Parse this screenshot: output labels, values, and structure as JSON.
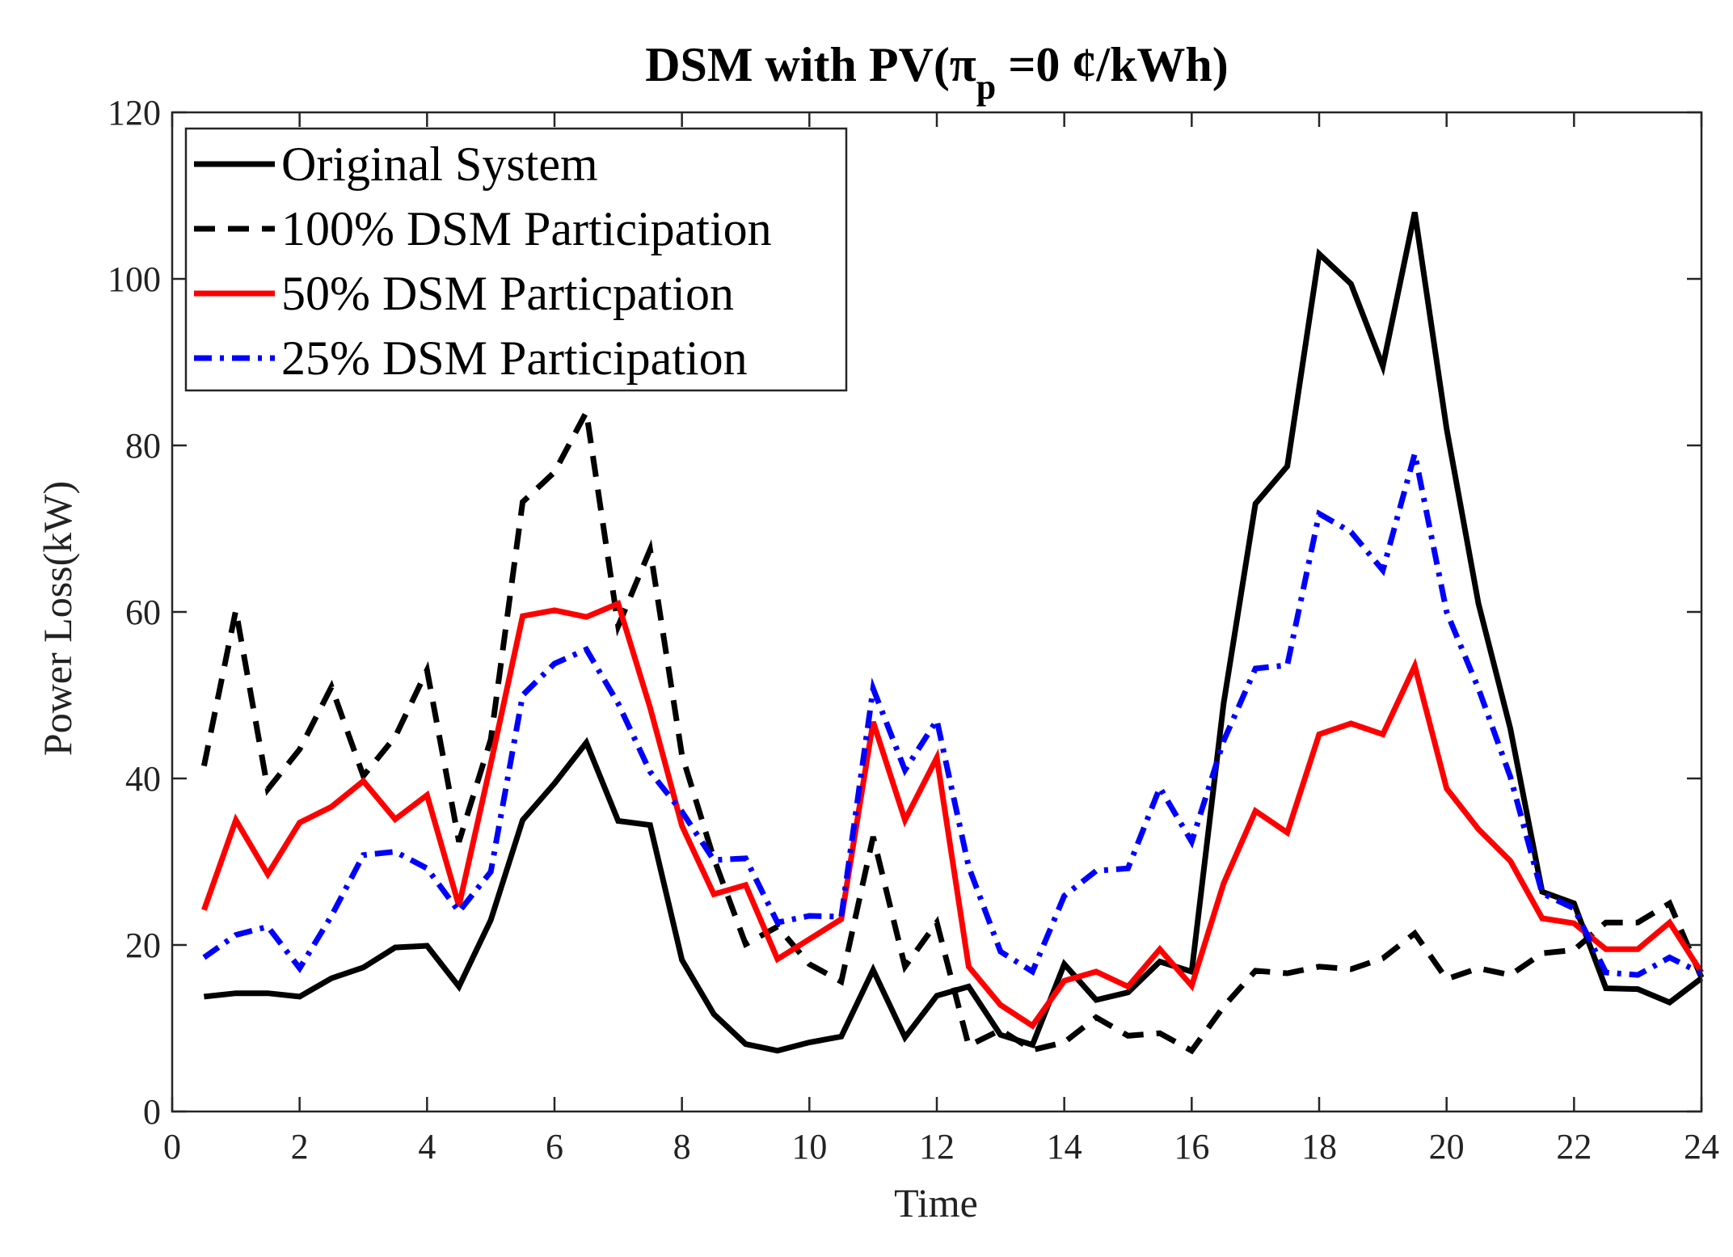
{
  "chart_data": {
    "type": "line",
    "title": {
      "prefix": "DSM with PV(",
      "pi": "π",
      "subscript": "p",
      "suffix": " =0 ¢/kWh)"
    },
    "xlabel": "Time",
    "ylabel": "Power Loss(kW)",
    "xlim": [
      0,
      24
    ],
    "ylim": [
      0,
      120
    ],
    "xticks": [
      0,
      2,
      4,
      6,
      8,
      10,
      12,
      14,
      16,
      18,
      20,
      22,
      24
    ],
    "yticks": [
      0,
      20,
      40,
      60,
      80,
      100,
      120
    ],
    "grid": false,
    "legend_position": "top-left",
    "x": [
      0.5,
      1,
      1.5,
      2,
      2.5,
      3,
      3.5,
      4,
      4.5,
      5,
      5.5,
      6,
      6.5,
      7,
      7.5,
      8,
      8.5,
      9,
      9.5,
      10,
      10.5,
      11,
      11.5,
      12,
      12.5,
      13,
      13.5,
      14,
      14.5,
      15,
      15.5,
      16,
      16.5,
      17,
      17.5,
      18,
      18.5,
      19,
      19.5,
      20,
      20.5,
      21,
      21.5,
      22,
      22.5,
      23,
      23.5,
      24
    ],
    "series": [
      {
        "name": "Original System",
        "color": "#000000",
        "dash": "solid",
        "values": [
          13.8,
          14.2,
          14.2,
          13.8,
          16,
          17.3,
          19.7,
          19.9,
          15,
          23,
          35,
          39.4,
          44.3,
          34.9,
          34.4,
          18.2,
          11.7,
          8.1,
          7.3,
          8.3,
          9,
          17,
          8.9,
          13.9,
          15,
          9.2,
          8,
          17.7,
          13.4,
          14.3,
          18,
          16.8,
          49,
          73,
          77.5,
          103,
          99.4,
          89.5,
          108,
          82,
          61,
          46,
          26.4,
          25,
          14.8,
          14.7,
          13.1,
          16
        ]
      },
      {
        "name": "100% DSM Participation",
        "color": "#000000",
        "dash": "dashed",
        "values": [
          41.5,
          60.2,
          38.7,
          43.5,
          51,
          40.3,
          45,
          53,
          32.4,
          44.7,
          73.2,
          76.8,
          84,
          58.3,
          67.5,
          42.8,
          30.4,
          20.1,
          22.2,
          17.7,
          15.6,
          33,
          17.4,
          22.7,
          7.9,
          9.8,
          7.4,
          8.3,
          11.3,
          9.1,
          9.4,
          7.3,
          12.6,
          16.9,
          16.6,
          17.4,
          17.1,
          18.4,
          21.4,
          15.9,
          17.2,
          16.4,
          19,
          19.4,
          22.7,
          22.7,
          25,
          16.1
        ]
      },
      {
        "name": "50% DSM Particpation",
        "color": "#ff0000",
        "dash": "solid",
        "values": [
          24.2,
          35,
          28.5,
          34.7,
          36.6,
          39.7,
          35.1,
          38,
          24.7,
          41.8,
          59.5,
          60.2,
          59.4,
          61,
          48.5,
          34.3,
          26.1,
          27.2,
          18.3,
          20.7,
          23.1,
          46.8,
          35,
          42.5,
          17.4,
          12.8,
          10.3,
          15.7,
          16.8,
          15,
          19.5,
          15.1,
          27.4,
          36.1,
          33.5,
          45.3,
          46.6,
          45.3,
          53.5,
          38.8,
          33.9,
          30.1,
          23.2,
          22.6,
          19.5,
          19.5,
          22.7,
          16.7
        ]
      },
      {
        "name": "25% DSM Participation",
        "color": "#0000ff",
        "dash": "dashdot",
        "values": [
          18.5,
          21.2,
          22.2,
          17.2,
          23.5,
          30.8,
          31.2,
          29.2,
          24,
          28.8,
          50,
          53.8,
          55.5,
          49,
          40.8,
          36,
          30.2,
          30.4,
          22.7,
          23.5,
          23.4,
          50.8,
          41,
          47,
          29.4,
          19.2,
          16.8,
          25.9,
          28.9,
          29.2,
          38.9,
          32.4,
          44.5,
          53.2,
          53.6,
          71.8,
          69.6,
          65,
          79,
          60,
          50.8,
          40.2,
          26.2,
          24.4,
          16.7,
          16.4,
          18.5,
          16.6
        ]
      }
    ]
  }
}
